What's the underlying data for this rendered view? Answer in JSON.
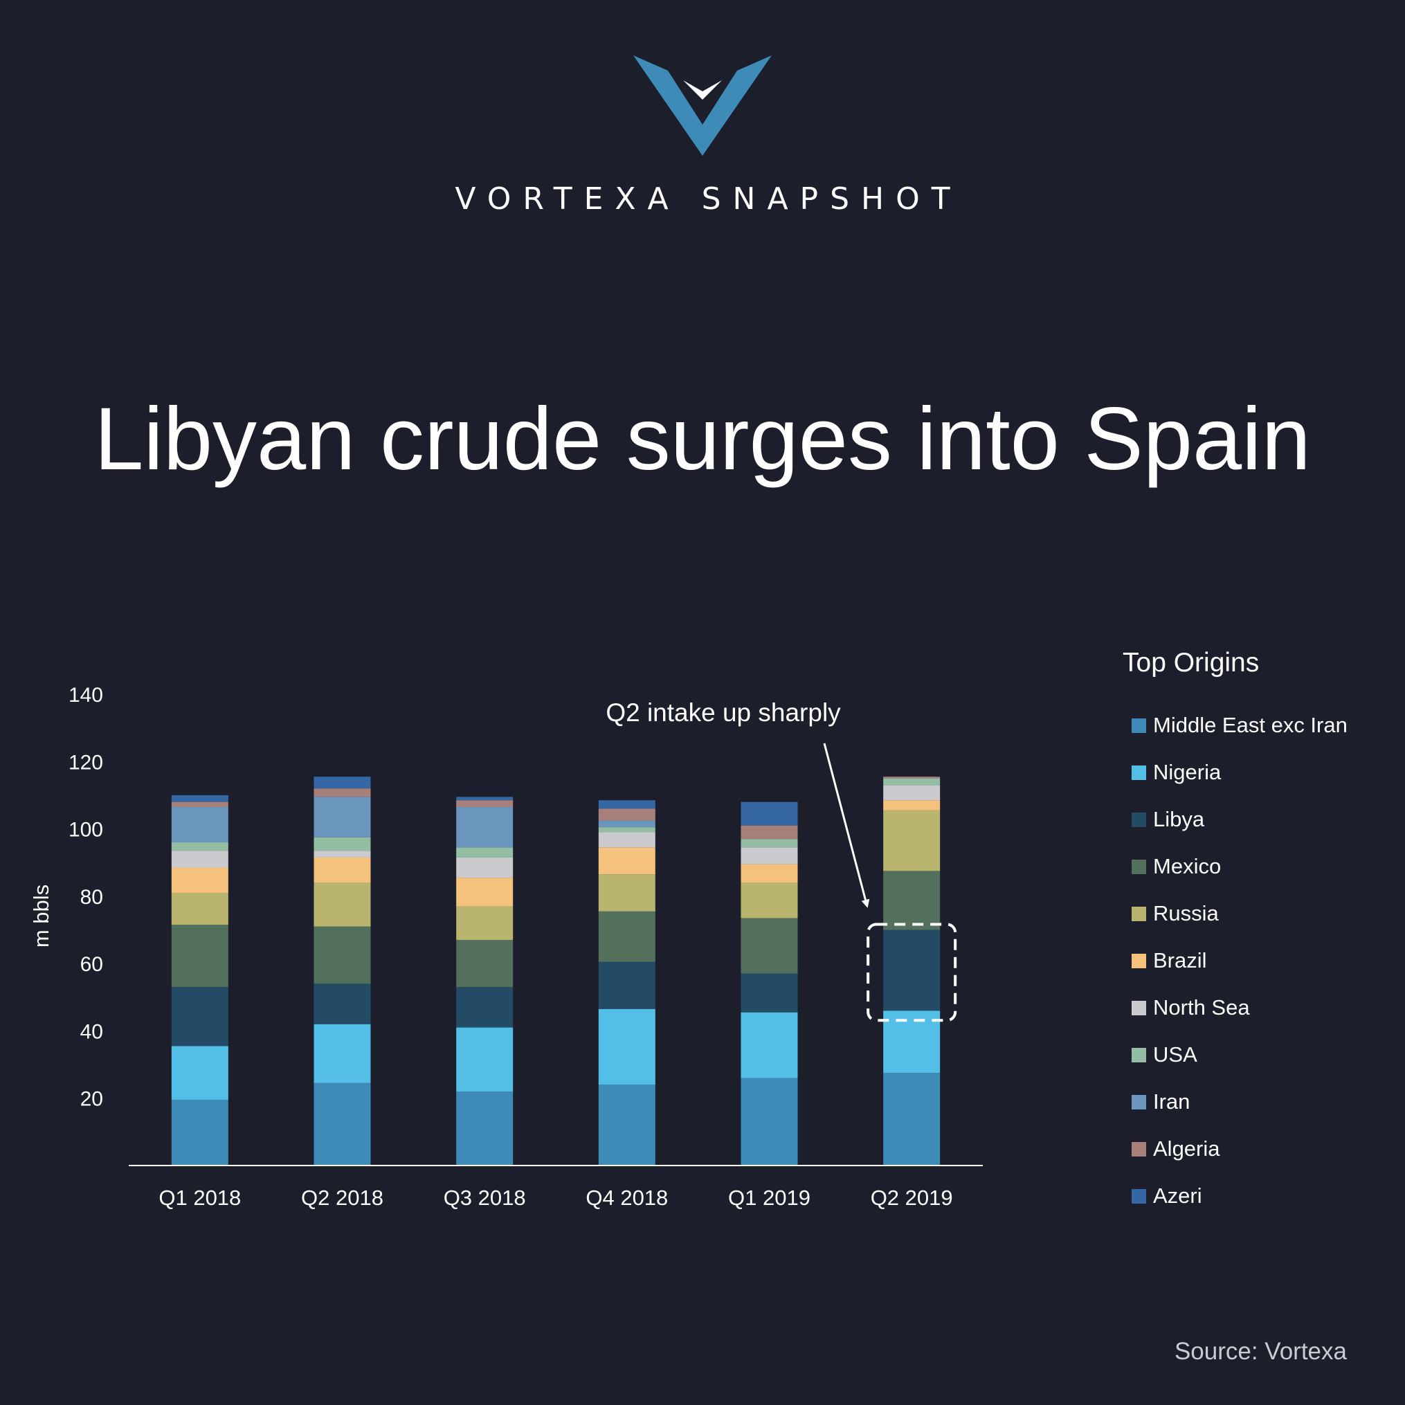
{
  "brand": {
    "logo_icon": "vortexa-v-logo",
    "name": "VORTEXA SNAPSHOT"
  },
  "headline": "Libyan crude surges into Spain",
  "source": "Source: Vortexa",
  "annotation": {
    "text": "Q2 intake up sharply",
    "target_category": "Q2 2019",
    "target_series": "Libya"
  },
  "colors": {
    "background": "#1c1f2b",
    "axis": "#ffffff",
    "highlight_box": "#ffffff"
  },
  "chart_data": {
    "type": "bar",
    "stacked": true,
    "categories": [
      "Q1 2018",
      "Q2 2018",
      "Q3 2018",
      "Q4 2018",
      "Q1 2019",
      "Q2 2019"
    ],
    "ylabel": "m bbls",
    "xlabel": "",
    "ylim": [
      0,
      140
    ],
    "yticks": [
      20,
      40,
      60,
      80,
      100,
      120,
      140
    ],
    "grid": false,
    "legend_title": "Top Origins",
    "legend_position": "right",
    "series": [
      {
        "name": "Middle East exc Iran",
        "color": "#3d8bb6",
        "values": [
          19.5,
          24.5,
          22,
          24,
          26,
          27.5
        ]
      },
      {
        "name": "Nigeria",
        "color": "#53bfe6",
        "values": [
          16,
          17.5,
          19,
          22.5,
          19.5,
          18.5
        ]
      },
      {
        "name": "Libya",
        "color": "#234b66",
        "values": [
          17.5,
          12,
          12,
          14,
          11.5,
          24
        ]
      },
      {
        "name": "Mexico",
        "color": "#53705d",
        "values": [
          18.5,
          17,
          14,
          15,
          16.5,
          17.5
        ]
      },
      {
        "name": "Russia",
        "color": "#b9b56f",
        "values": [
          9.5,
          13,
          10,
          11,
          10.5,
          18
        ]
      },
      {
        "name": "Brazil",
        "color": "#f5c27d",
        "values": [
          7.5,
          7.5,
          8.5,
          8,
          5.5,
          3
        ]
      },
      {
        "name": "North Sea",
        "color": "#cbcbcf",
        "values": [
          5,
          2,
          6,
          4.5,
          5,
          4.5
        ]
      },
      {
        "name": "USA",
        "color": "#93bea4",
        "values": [
          2.5,
          4,
          3,
          1.5,
          2.5,
          2
        ]
      },
      {
        "name": "Iran",
        "color": "#6a95bd",
        "values": [
          10.5,
          12,
          12,
          2,
          0,
          0
        ]
      },
      {
        "name": "Algeria",
        "color": "#a8807a",
        "values": [
          1.5,
          2.5,
          2,
          3.5,
          4,
          0.5
        ]
      },
      {
        "name": "Azeri",
        "color": "#3567a5",
        "values": [
          2,
          3.5,
          1,
          2.5,
          7,
          0
        ]
      }
    ]
  }
}
